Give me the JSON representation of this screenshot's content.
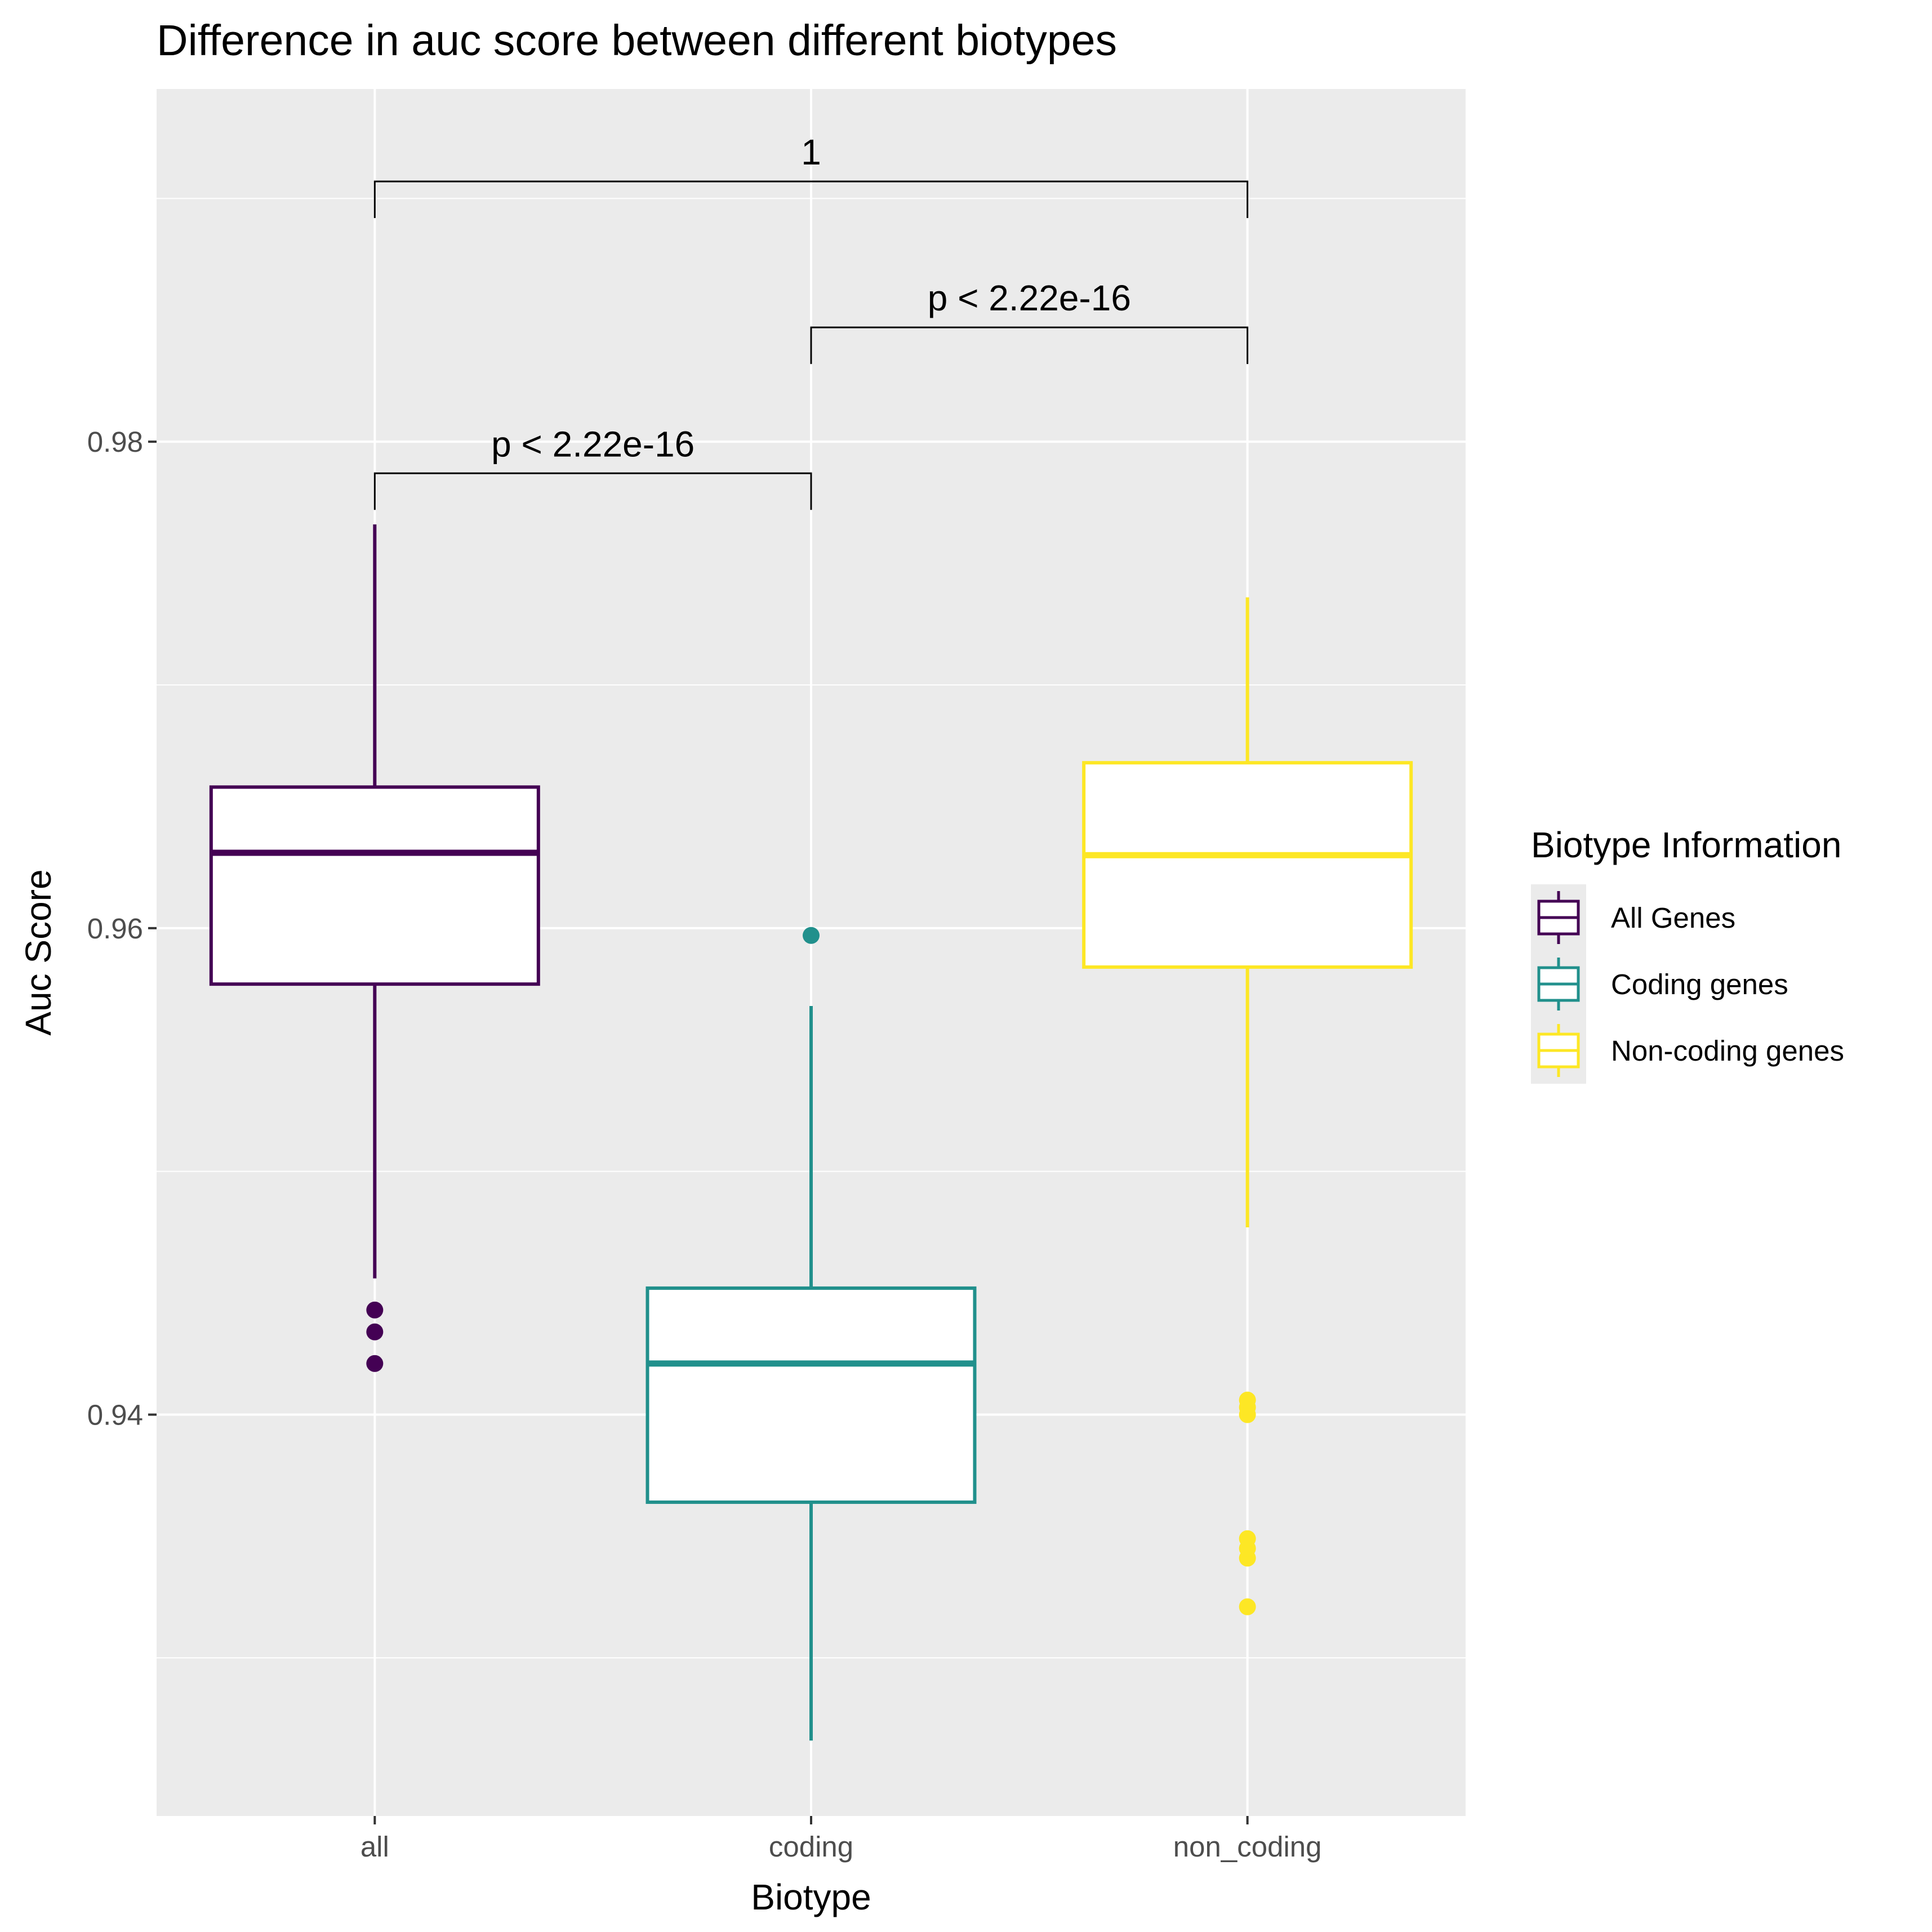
{
  "chart_data": {
    "type": "box",
    "title": "Difference in auc score between different biotypes",
    "xlabel": "Biotype",
    "ylabel": "Auc Score",
    "ylim": [
      0.9235,
      0.9945
    ],
    "yticks": [
      0.94,
      0.96,
      0.98
    ],
    "ytick_labels": [
      "0.94",
      "0.96",
      "0.98"
    ],
    "grid": true,
    "categories": [
      "all",
      "coding",
      "non_coding"
    ],
    "legend": {
      "title": "Biotype Information",
      "position": "right",
      "entries": [
        "All Genes",
        "Coding genes",
        "Non-coding genes"
      ]
    },
    "series": [
      {
        "name": "All Genes",
        "category": "all",
        "color": "#440154",
        "whisker_low": 0.9456,
        "q1": 0.9577,
        "median": 0.9631,
        "q3": 0.9658,
        "whisker_high": 0.9766,
        "outliers": [
          0.9421,
          0.9434,
          0.9443
        ]
      },
      {
        "name": "Coding genes",
        "category": "coding",
        "color": "#21908C",
        "whisker_low": 0.9266,
        "q1": 0.9364,
        "median": 0.9421,
        "q3": 0.9452,
        "whisker_high": 0.9568,
        "outliers": [
          0.9597
        ]
      },
      {
        "name": "Non-coding genes",
        "category": "non_coding",
        "color": "#FDE725",
        "whisker_low": 0.9477,
        "q1": 0.9584,
        "median": 0.963,
        "q3": 0.9668,
        "whisker_high": 0.9736,
        "outliers": [
          0.94,
          0.9403,
          0.9406,
          0.9341,
          0.9345,
          0.9349,
          0.9321
        ]
      }
    ],
    "annotations": [
      {
        "from": "all",
        "to": "coding",
        "label": "p < 2.22e-16",
        "y": 0.9787
      },
      {
        "from": "coding",
        "to": "non_coding",
        "label": "p < 2.22e-16",
        "y": 0.9847
      },
      {
        "from": "all",
        "to": "non_coding",
        "label": "1",
        "y": 0.9907
      }
    ]
  }
}
